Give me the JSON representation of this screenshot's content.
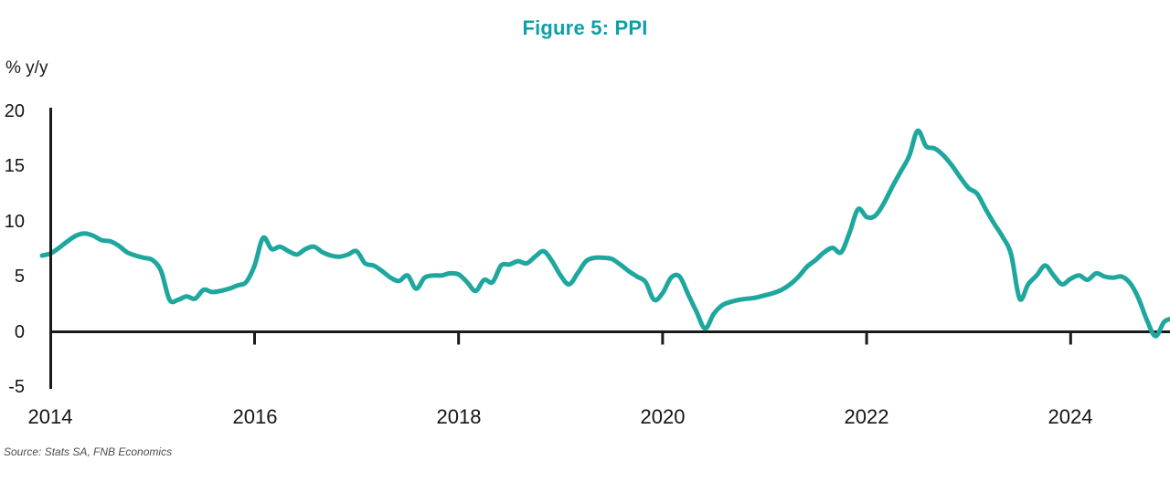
{
  "figure": {
    "title": "Figure 5: PPI",
    "axis_unit_label": "% y/y",
    "source": "Source: Stats SA, FNB Economics"
  },
  "colors": {
    "title": "#0f9fa8",
    "line": "#1ea79e",
    "axis": "#1a1a1a",
    "source_text": "#4d4d4d"
  },
  "chart_data": {
    "type": "line",
    "title": "Figure 5: PPI",
    "ylabel": "% y/y",
    "xlabel": "",
    "legend": "none",
    "grid": false,
    "ylim": [
      -5,
      20
    ],
    "y_tick_values": [
      20,
      15,
      10,
      5,
      0,
      -5
    ],
    "y_tick_labels": [
      "20",
      "15",
      "10",
      "5",
      "0",
      "-5"
    ],
    "x_tick_labels": [
      "2014",
      "2016",
      "2018",
      "2020",
      "2022",
      "2024"
    ],
    "series_name": "PPI, % y/y (monthly)",
    "start_month": "2013-12",
    "frequency": "monthly",
    "values": [
      6.9,
      7.1,
      7.6,
      8.2,
      8.7,
      8.9,
      8.7,
      8.3,
      8.2,
      7.8,
      7.2,
      6.9,
      6.7,
      6.5,
      5.5,
      2.9,
      2.9,
      3.2,
      3.0,
      3.8,
      3.6,
      3.7,
      3.9,
      4.2,
      4.5,
      6.0,
      8.5,
      7.5,
      7.7,
      7.3,
      7.0,
      7.5,
      7.7,
      7.2,
      6.9,
      6.8,
      7.0,
      7.3,
      6.2,
      6.0,
      5.5,
      4.9,
      4.6,
      5.1,
      3.9,
      4.9,
      5.1,
      5.1,
      5.3,
      5.2,
      4.5,
      3.7,
      4.7,
      4.5,
      6.0,
      6.1,
      6.4,
      6.2,
      6.8,
      7.3,
      6.4,
      5.1,
      4.3,
      5.3,
      6.4,
      6.7,
      6.7,
      6.6,
      6.1,
      5.5,
      5.0,
      4.5,
      2.9,
      3.5,
      4.9,
      5.0,
      3.4,
      1.8,
      0.3,
      1.6,
      2.4,
      2.7,
      2.9,
      3.0,
      3.1,
      3.3,
      3.5,
      3.8,
      4.3,
      5.0,
      5.9,
      6.5,
      7.2,
      7.6,
      7.2,
      9.0,
      11.1,
      10.4,
      10.5,
      11.6,
      13.1,
      14.5,
      15.9,
      18.2,
      16.8,
      16.6,
      16.0,
      15.1,
      14.0,
      13.0,
      12.5,
      11.1,
      9.8,
      8.6,
      7.0,
      3.0,
      4.3,
      5.1,
      6.0,
      5.1,
      4.3,
      4.8,
      5.1,
      4.7,
      5.3,
      5.0,
      4.9,
      5.0,
      4.4,
      3.0,
      1.0,
      -0.4,
      0.9,
      1.2
    ]
  }
}
